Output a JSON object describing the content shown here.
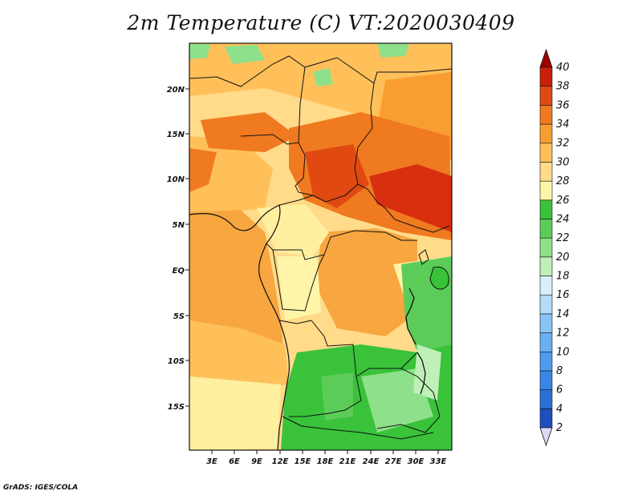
{
  "title": "2m Temperature (C) VT:2020030409",
  "credit": "GrADS: IGES/COLA",
  "map": {
    "lat_ticks": [
      "20N",
      "15N",
      "10N",
      "5N",
      "EQ",
      "5S",
      "10S",
      "15S"
    ],
    "lon_ticks": [
      "3E",
      "6E",
      "9E",
      "12E",
      "15E",
      "18E",
      "21E",
      "24E",
      "27E",
      "30E",
      "33E"
    ]
  },
  "colorbar": {
    "levels": [
      "2",
      "4",
      "6",
      "8",
      "10",
      "12",
      "14",
      "16",
      "18",
      "20",
      "22",
      "24",
      "26",
      "28",
      "30",
      "32",
      "34",
      "36",
      "38",
      "40"
    ],
    "colors": [
      "#1a1a8c",
      "#1f4fbf",
      "#2a6fd6",
      "#3a86e6",
      "#4f9bf0",
      "#6aaff2",
      "#8ac4f5",
      "#b2dcf8",
      "#d8f0fb",
      "#bff0b8",
      "#8ee08a",
      "#5ccc58",
      "#39c23a",
      "#fff5a8",
      "#ffdb8a",
      "#ffc05a",
      "#f89e30",
      "#f07a20",
      "#e04a12",
      "#c8200a",
      "#a00000"
    ]
  }
}
